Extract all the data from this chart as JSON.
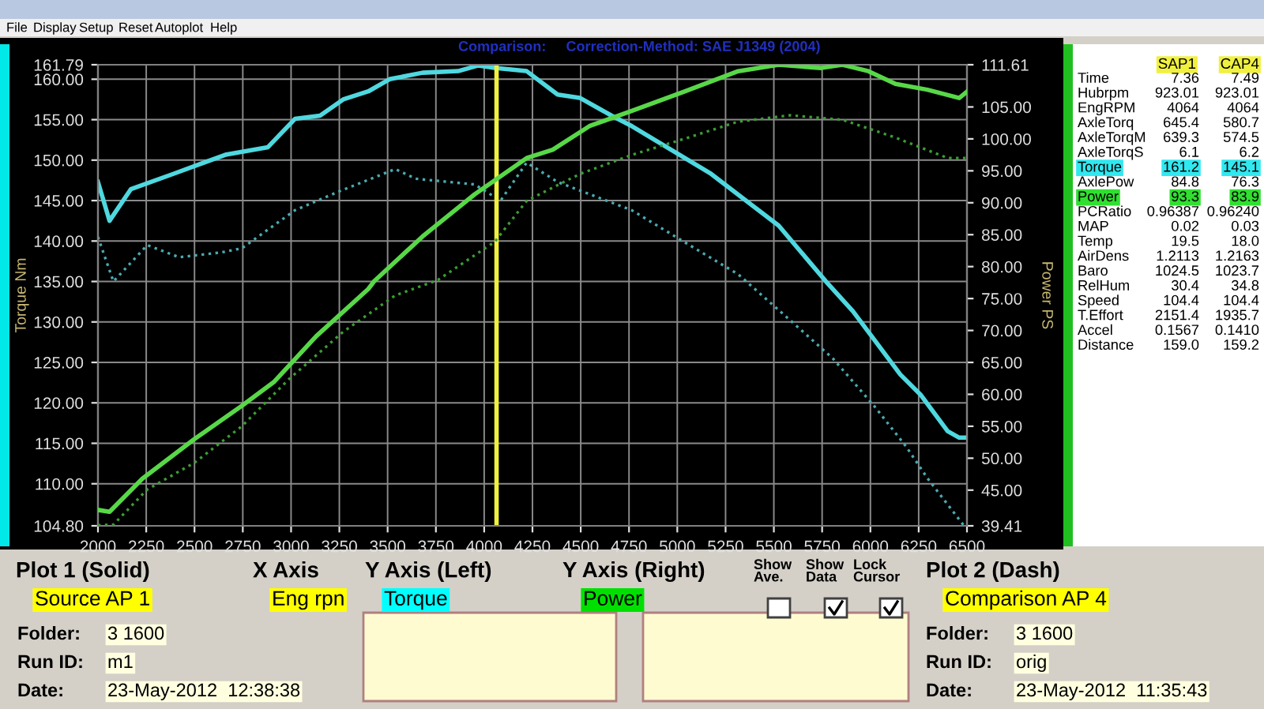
{
  "chart_data": {
    "type": "line",
    "title": "Comparison:     Correction-Method: SAE J1349 (2004)",
    "xlabel": null,
    "ylabel": "Torque Nm",
    "y2label": "Power PS",
    "series": [
      {
        "type": "line",
        "axis": "y",
        "color": "#4fd8e0",
        "line_style": "solid",
        "x": [
          2000,
          2060,
          2170,
          2390,
          2665,
          2880,
          3020,
          3150,
          3270,
          3400,
          3510,
          3680,
          3865,
          3970,
          4055,
          4220,
          4380,
          4495,
          4660,
          4765,
          5175,
          5525,
          5770,
          5910,
          6155,
          6260,
          6400,
          6460,
          6500
        ],
        "values": [
          147.3,
          142.5,
          146.4,
          148.3,
          150.7,
          151.6,
          155.1,
          155.5,
          157.5,
          158.5,
          160.0,
          160.8,
          161.0,
          161.7,
          161.4,
          161.0,
          158.1,
          157.7,
          155.5,
          154.2,
          148.3,
          141.9,
          135.0,
          131.3,
          123.5,
          121.0,
          116.5,
          115.7,
          115.7
        ]
      },
      {
        "type": "line",
        "axis": "y",
        "color": "#4aaab0",
        "line_style": "dotted",
        "x": [
          2000,
          2080,
          2255,
          2420,
          2640,
          2745,
          3020,
          3235,
          3540,
          3645,
          3950,
          4085,
          4220,
          4380,
          4765,
          5035,
          5315,
          5585,
          5805,
          6020,
          6185,
          6295,
          6485
        ],
        "values": [
          140.5,
          135.0,
          139.5,
          138.0,
          138.6,
          139.1,
          143.8,
          146.0,
          148.9,
          147.7,
          147.0,
          145.0,
          149.7,
          147.3,
          143.8,
          139.9,
          135.9,
          130.2,
          125.5,
          119.6,
          114.6,
          110.7,
          104.8
        ]
      },
      {
        "type": "line",
        "axis": "y2",
        "color": "#58d848",
        "line_style": "solid",
        "x": [
          2000,
          2060,
          2230,
          2500,
          2745,
          2910,
          3130,
          3400,
          3430,
          3680,
          3950,
          4220,
          4355,
          4545,
          4765,
          5035,
          5315,
          5525,
          5745,
          5855,
          5990,
          6130,
          6295,
          6460,
          6500
        ],
        "values": [
          41.9,
          41.6,
          46.8,
          53.0,
          58.2,
          61.9,
          69.1,
          76.5,
          77.7,
          84.7,
          91.3,
          97.0,
          98.3,
          102.0,
          104.4,
          107.4,
          110.6,
          111.6,
          111.1,
          111.6,
          110.6,
          108.6,
          107.7,
          106.4,
          107.4
        ]
      },
      {
        "type": "line",
        "axis": "y2",
        "color": "#3c9c34",
        "line_style": "dotted",
        "x": [
          2000,
          2080,
          2255,
          2500,
          2745,
          2990,
          3270,
          3540,
          3760,
          4055,
          4220,
          4495,
          4765,
          5035,
          5315,
          5585,
          5855,
          6130,
          6400,
          6500
        ],
        "values": [
          39.5,
          39.6,
          45.1,
          49.3,
          55.0,
          62.4,
          69.8,
          75.5,
          77.9,
          83.9,
          90.3,
          94.5,
          97.5,
          100.0,
          102.7,
          103.7,
          103.0,
          100.2,
          97.0,
          97.0
        ]
      }
    ],
    "xlim": [
      2000,
      6500
    ],
    "xticks": [
      2000,
      2250,
      2500,
      2750,
      3000,
      3250,
      3500,
      3750,
      4000,
      4250,
      4500,
      4750,
      5000,
      5250,
      5500,
      5750,
      6000,
      6250,
      6500
    ],
    "ylim": [
      104.8,
      161.79
    ],
    "yticks": [
      {
        "value": 104.8,
        "label": "104.80"
      },
      {
        "value": 110,
        "label": "110.00"
      },
      {
        "value": 115,
        "label": "115.00"
      },
      {
        "value": 120,
        "label": "120.00"
      },
      {
        "value": 125,
        "label": "125.00"
      },
      {
        "value": 130,
        "label": "130.00"
      },
      {
        "value": 135,
        "label": "135.00"
      },
      {
        "value": 140,
        "label": "140.00"
      },
      {
        "value": 145,
        "label": "145.00"
      },
      {
        "value": 150,
        "label": "150.00"
      },
      {
        "value": 155,
        "label": "155.00"
      },
      {
        "value": 160,
        "label": "160.00"
      },
      161.79
    ],
    "y2lim": [
      39.41,
      111.61
    ],
    "y2ticks": [
      39.41,
      {
        "value": 45,
        "label": "45.00"
      },
      {
        "value": 50,
        "label": "50.00"
      },
      {
        "value": 55,
        "label": "55.00"
      },
      {
        "value": 60,
        "label": "60.00"
      },
      {
        "value": 65,
        "label": "65.00"
      },
      {
        "value": 70,
        "label": "70.00"
      },
      {
        "value": 75,
        "label": "75.00"
      },
      {
        "value": 80,
        "label": "80.00"
      },
      {
        "value": 85,
        "label": "85.00"
      },
      {
        "value": 90,
        "label": "90.00"
      },
      {
        "value": 95,
        "label": "95.00"
      },
      {
        "value": 100,
        "label": "100.00"
      },
      {
        "value": 105,
        "label": "105.00"
      },
      111.61
    ],
    "ref_lines": [
      {
        "axis": "x",
        "value": 4064,
        "color": "#f0f040",
        "line_style": "solid"
      }
    ],
    "grid": true,
    "legend": false,
    "marker": "none",
    "annotations": [
      "File",
      "Display",
      "Setup",
      "Reset",
      "Autoplot",
      "Help",
      "SAP1",
      "CAP4",
      "Time",
      "7.36",
      "7.49",
      "Hubrpm",
      "923.01",
      "923.01",
      "EngRPM",
      "4064",
      "4064",
      "AxleTorq",
      "645.4",
      "580.7",
      "AxleTorqM",
      "639.3",
      "574.5",
      "AxleTorqS",
      "6.1",
      "6.2",
      "Torque",
      "161.2",
      "145.1",
      "AxlePow",
      "84.8",
      "76.3",
      "Power",
      "93.3",
      "83.9",
      "PCRatio",
      "0.96387",
      "0.96240",
      "MAP",
      "0.02",
      "0.03",
      "Temp",
      "19.5",
      "18.0",
      "AirDens",
      "1.2113",
      "1.2163",
      "Baro",
      "1024.5",
      "1023.7",
      "RelHum",
      "30.4",
      "34.8",
      "Speed",
      "104.4",
      "104.4",
      "T.Effort",
      "2151.4",
      "1935.7",
      "Accel",
      "0.1567",
      "0.1410",
      "Distance",
      "159.0",
      "159.2",
      "Plot 1 (Solid)",
      "X Axis",
      "Y Axis (Left)",
      "Y Axis (Right)",
      "Show\nAve.",
      "Show\nData",
      "Lock\nCursor",
      "Plot 2 (Dash)",
      "Source AP 1",
      "Eng rpn",
      "Torque",
      "Power",
      "Comparison AP 4",
      "Folder:",
      "3 1600",
      "Run ID:",
      "m1",
      "Date:",
      "23-May-2012  12:38:38",
      "Folder:",
      "3 1600",
      "Run ID:",
      "orig",
      "Date:",
      "23-May-2012  11:35:43"
    ]
  }
}
